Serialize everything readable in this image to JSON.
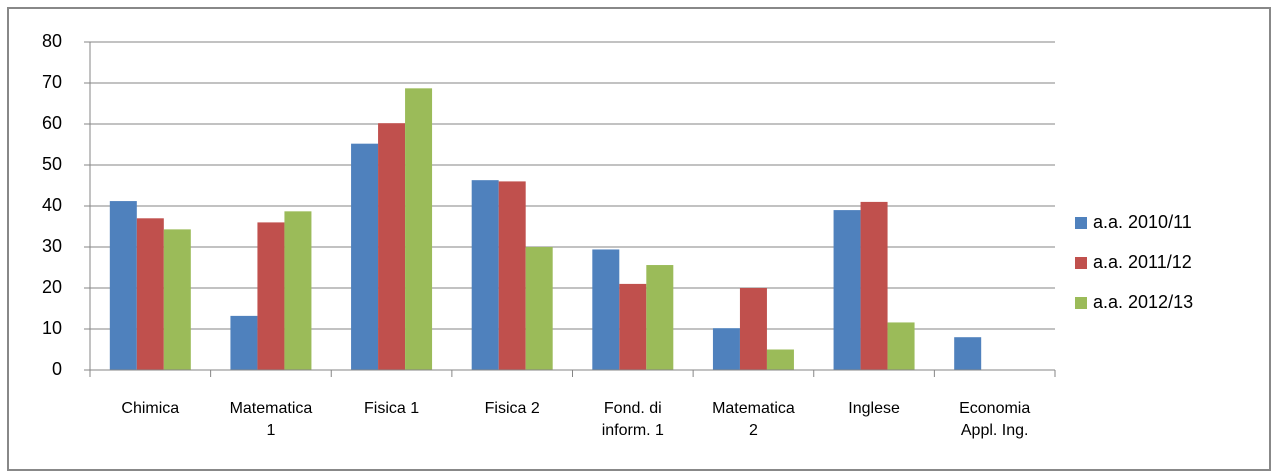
{
  "chart_data": {
    "type": "bar",
    "categories": [
      "Chimica",
      "Matematica\n1",
      "Fisica 1",
      "Fisica 2",
      "Fond. di\ninform. 1",
      "Matematica\n2",
      "Inglese",
      "Economia\nAppl. Ing."
    ],
    "series": [
      {
        "name": "a.a. 2010/11",
        "color": "#4f81bd",
        "values": [
          41.2,
          13.2,
          55.2,
          46.3,
          29.4,
          10.2,
          39,
          8
        ]
      },
      {
        "name": "a.a. 2011/12",
        "color": "#c0504d",
        "values": [
          37,
          36,
          60.2,
          46,
          21,
          20,
          41,
          null
        ]
      },
      {
        "name": "a.a. 2012/13",
        "color": "#9bbb59",
        "values": [
          34.3,
          38.7,
          68.7,
          30,
          25.6,
          5,
          11.6,
          null
        ]
      }
    ],
    "ylim": [
      0,
      80
    ],
    "yticks": [
      0,
      10,
      20,
      30,
      40,
      50,
      60,
      70,
      80
    ],
    "grid": true,
    "legend": "right"
  }
}
